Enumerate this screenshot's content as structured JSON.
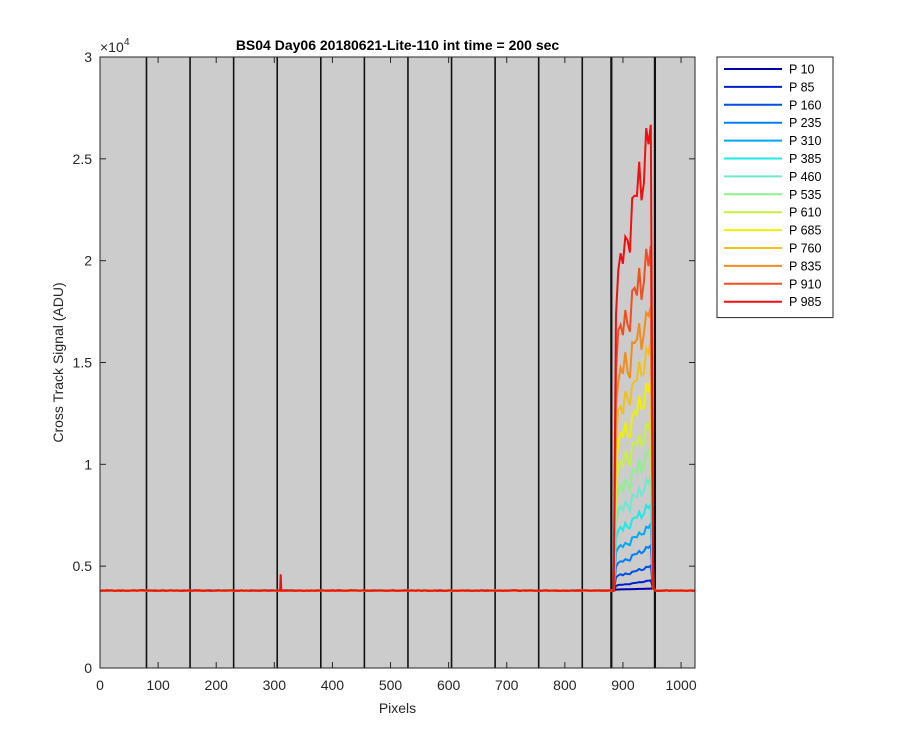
{
  "chart_data": {
    "type": "line",
    "title": "BS04 Day06 20180621-Lite-110 int time = 200 sec",
    "xlabel": "Pixels",
    "ylabel": "Cross Track Signal (ADU)",
    "xlim": [
      0,
      1024
    ],
    "ylim": [
      0,
      30000
    ],
    "y_exponent_label": "×10",
    "y_exponent_power": "4",
    "x_ticks": [
      0,
      100,
      200,
      300,
      400,
      500,
      600,
      700,
      800,
      900,
      1000
    ],
    "x_tick_labels": [
      "0",
      "100",
      "200",
      "300",
      "400",
      "500",
      "600",
      "700",
      "800",
      "900",
      "1000"
    ],
    "y_ticks": [
      0,
      5000,
      10000,
      15000,
      20000,
      25000,
      30000
    ],
    "y_tick_labels": [
      "0",
      "0.5",
      "1",
      "1.5",
      "2",
      "2.5",
      "3"
    ],
    "background_color": "#cccccc",
    "vertical_dividers_x": [
      80,
      155,
      230,
      305,
      380,
      455,
      530,
      605,
      680,
      755,
      830,
      880,
      955
    ],
    "thick_dividers_x": [
      880,
      955
    ],
    "legend_position": "outside-right",
    "baseline": 3800,
    "spike": {
      "x": 311,
      "value": 4600
    },
    "plateau": {
      "x_start": 886,
      "x_end": 948
    },
    "series": [
      {
        "name": "P 10",
        "color": "#0000aa",
        "plateau_level": 3850,
        "plateau_end": 3900
      },
      {
        "name": "P 85",
        "color": "#0020d0",
        "plateau_level": 4050,
        "plateau_end": 4300
      },
      {
        "name": "P 160",
        "color": "#0050e0",
        "plateau_level": 4500,
        "plateau_end": 5000
      },
      {
        "name": "P 235",
        "color": "#0080f0",
        "plateau_level": 5100,
        "plateau_end": 6000
      },
      {
        "name": "P 310",
        "color": "#00aaf0",
        "plateau_level": 5800,
        "plateau_end": 7000
      },
      {
        "name": "P 385",
        "color": "#20e8e8",
        "plateau_level": 6600,
        "plateau_end": 8000
      },
      {
        "name": "P 460",
        "color": "#70e8d0",
        "plateau_level": 7500,
        "plateau_end": 9300
      },
      {
        "name": "P 535",
        "color": "#90f090",
        "plateau_level": 8500,
        "plateau_end": 10700
      },
      {
        "name": "P 610",
        "color": "#c8f040",
        "plateau_level": 9600,
        "plateau_end": 12100
      },
      {
        "name": "P 685",
        "color": "#f0f000",
        "plateau_level": 10800,
        "plateau_end": 14000
      },
      {
        "name": "P 760",
        "color": "#f0c020",
        "plateau_level": 12200,
        "plateau_end": 15800
      },
      {
        "name": "P 835",
        "color": "#f08c20",
        "plateau_level": 13900,
        "plateau_end": 17600
      },
      {
        "name": "P 910",
        "color": "#f05020",
        "plateau_level": 16000,
        "plateau_end": 20400
      },
      {
        "name": "P 985",
        "color": "#f01010",
        "plateau_level": 19000,
        "plateau_end": 26500
      }
    ]
  }
}
